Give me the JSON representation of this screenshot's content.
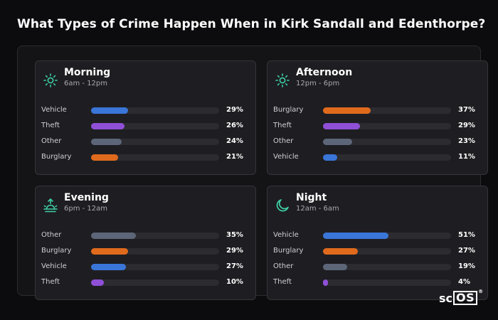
{
  "title": "What Types of Crime Happen When in Kirk Sandall and Edenthorpe?",
  "logo_text": "scOS",
  "logo_reg": "®",
  "colors": {
    "Vehicle": "#3a75d8",
    "Theft": "#8f4fd6",
    "Other": "#5c6678",
    "Burglary": "#e06a1c",
    "icon": "#3fcfa6"
  },
  "chart_data": [
    {
      "type": "bar",
      "title": "Morning",
      "subtitle": "6am - 12pm",
      "icon": "sun-icon",
      "categories": [
        "Vehicle",
        "Theft",
        "Other",
        "Burglary"
      ],
      "values": [
        29,
        26,
        24,
        21
      ],
      "labels": [
        "29%",
        "26%",
        "24%",
        "21%"
      ]
    },
    {
      "type": "bar",
      "title": "Afternoon",
      "subtitle": "12pm - 6pm",
      "icon": "sun-icon",
      "categories": [
        "Burglary",
        "Theft",
        "Other",
        "Vehicle"
      ],
      "values": [
        37,
        29,
        23,
        11
      ],
      "labels": [
        "37%",
        "29%",
        "23%",
        "11%"
      ]
    },
    {
      "type": "bar",
      "title": "Evening",
      "subtitle": "6pm - 12am",
      "icon": "sunset-icon",
      "categories": [
        "Other",
        "Burglary",
        "Vehicle",
        "Theft"
      ],
      "values": [
        35,
        29,
        27,
        10
      ],
      "labels": [
        "35%",
        "29%",
        "27%",
        "10%"
      ]
    },
    {
      "type": "bar",
      "title": "Night",
      "subtitle": "12am - 6am",
      "icon": "moon-icon",
      "categories": [
        "Vehicle",
        "Burglary",
        "Other",
        "Theft"
      ],
      "values": [
        51,
        27,
        19,
        4
      ],
      "labels": [
        "51%",
        "27%",
        "19%",
        "4%"
      ]
    }
  ]
}
